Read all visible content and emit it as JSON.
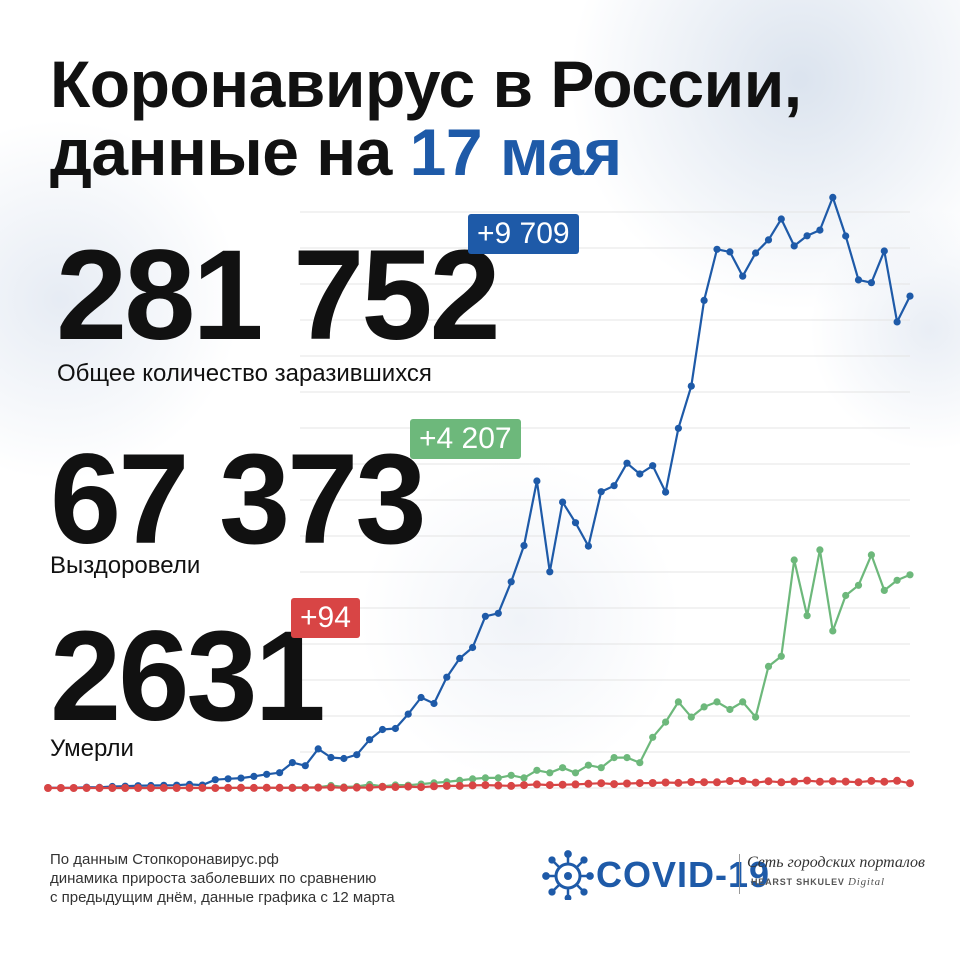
{
  "header": {
    "title_line1": "Коронавирус в России,",
    "title_prefix": "данные на ",
    "title_date": "17 мая"
  },
  "stats": {
    "infected": {
      "value": "281 752",
      "delta": "+9 709",
      "label": "Общее количество заразившихся"
    },
    "recovered": {
      "value": "67 373",
      "delta": "+4 207",
      "label": "Выздоровели"
    },
    "deaths": {
      "value": "2631",
      "delta": "+94",
      "label": "Умерли"
    }
  },
  "source": {
    "line1": "По данным Стопкоронавирус.рф",
    "line2": "динамика прироста заболевших по сравнению",
    "line3": "с предыдущим днём, данные графика с 12 марта"
  },
  "logo": {
    "word": "COVID-19",
    "network": "Сеть городских порталов",
    "sub_brand": "HEARST SHKULEV",
    "sub_digital": "Digital",
    "icon": "virus-icon"
  },
  "colors": {
    "infected": "#1e5aa8",
    "recovered": "#6db87b",
    "deaths": "#d84545",
    "accent": "#1e5aa8"
  },
  "chart_data": {
    "type": "line",
    "title": "",
    "xlabel": "",
    "ylabel": "",
    "x_start_label": "12 марта",
    "grid": true,
    "ylim": [
      0,
      12000
    ],
    "series": [
      {
        "key": "infected",
        "values": [
          6,
          2,
          3,
          15,
          12,
          30,
          35,
          46,
          50,
          54,
          55,
          71,
          57,
          163,
          182,
          196,
          228,
          270,
          302,
          501,
          440,
          771,
          601,
          582,
          658,
          954,
          1154,
          1175,
          1459,
          1786,
          1667,
          2186,
          2558,
          2774,
          3388,
          3448,
          4070,
          4785,
          6060,
          4268,
          5642,
          5236,
          4774,
          5849,
          5966,
          6411,
          6198,
          6361,
          5841,
          7099,
          7933,
          9623,
          10633,
          10581,
          10102,
          10559,
          10817,
          11231,
          10699,
          10899,
          11012,
          11656,
          10895,
          10028,
          9974,
          10598,
          9200,
          9709
        ]
      },
      {
        "key": "recovered",
        "values": [
          0,
          0,
          0,
          0,
          0,
          0,
          0,
          0,
          0,
          0,
          2,
          0,
          5,
          0,
          12,
          12,
          15,
          50,
          20,
          30,
          70,
          34,
          60,
          55,
          76,
          100,
          120,
          150,
          180,
          200,
          200,
          250,
          200,
          350,
          300,
          400,
          300,
          450,
          400,
          600,
          600,
          500,
          1000,
          1300,
          1700,
          1400,
          1600,
          1700,
          1550,
          1700,
          1400,
          2400,
          2600,
          4500,
          3400,
          4700,
          3100,
          3800,
          4000,
          4600,
          3900,
          4100,
          4207
        ]
      },
      {
        "key": "deaths",
        "values": [
          0,
          0,
          0,
          0,
          0,
          0,
          0,
          0,
          0,
          1,
          0,
          2,
          1,
          0,
          1,
          3,
          1,
          5,
          4,
          2,
          6,
          7,
          13,
          4,
          8,
          10,
          22,
          19,
          28,
          18,
          33,
          42,
          41,
          51,
          57,
          49,
          42,
          58,
          72,
          57,
          66,
          72,
          82,
          95,
          76,
          88,
          96,
          98,
          108,
          101,
          119,
          115,
          113,
          138,
          139,
          107,
          134,
          113,
          129,
          146,
          125,
          135,
          127,
          115,
          141,
          124,
          143,
          94
        ]
      }
    ]
  }
}
